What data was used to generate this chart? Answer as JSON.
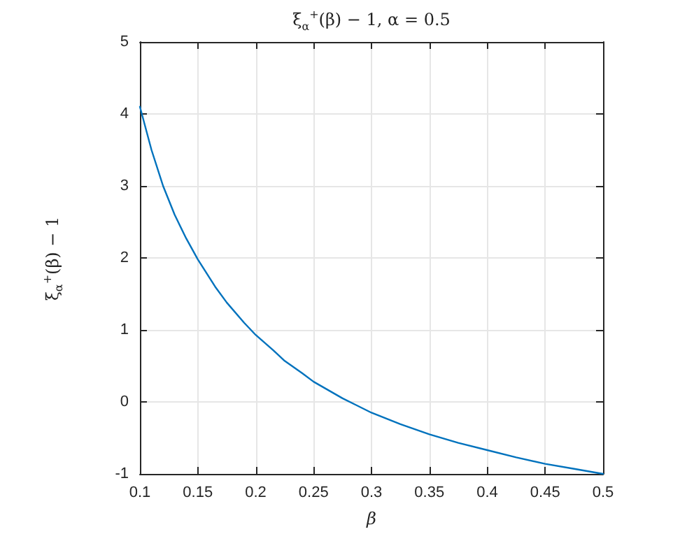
{
  "chart_data": {
    "type": "line",
    "title": "ξ$_{α}$$^{+}$(β) − 1, α = 0.5",
    "xlabel": "β",
    "ylabel": "ξ$_{α}$$^{+}$(β) − 1",
    "series": [
      {
        "color": "#0072bd",
        "x": [
          0.1,
          0.11,
          0.12,
          0.13,
          0.14,
          0.15,
          0.165,
          0.175,
          0.19,
          0.2,
          0.215,
          0.225,
          0.24,
          0.25,
          0.275,
          0.3,
          0.325,
          0.35,
          0.375,
          0.4,
          0.425,
          0.45,
          0.475,
          0.5
        ],
        "values": [
          4.1,
          3.5,
          3.0,
          2.6,
          2.27,
          1.98,
          1.6,
          1.38,
          1.1,
          0.93,
          0.72,
          0.57,
          0.4,
          0.28,
          0.05,
          -0.15,
          -0.31,
          -0.45,
          -0.57,
          -0.67,
          -0.77,
          -0.86,
          -0.93,
          -1.0
        ]
      }
    ],
    "xlim": [
      0.1,
      0.5
    ],
    "xticks": [
      0.1,
      0.15,
      0.2,
      0.25,
      0.3,
      0.35,
      0.4,
      0.45,
      0.5
    ],
    "ylim": [
      -1,
      5
    ],
    "yticks": [
      -1,
      0,
      1,
      2,
      3,
      4,
      5
    ],
    "grid": true,
    "marker": "none",
    "line_style": "solid"
  }
}
